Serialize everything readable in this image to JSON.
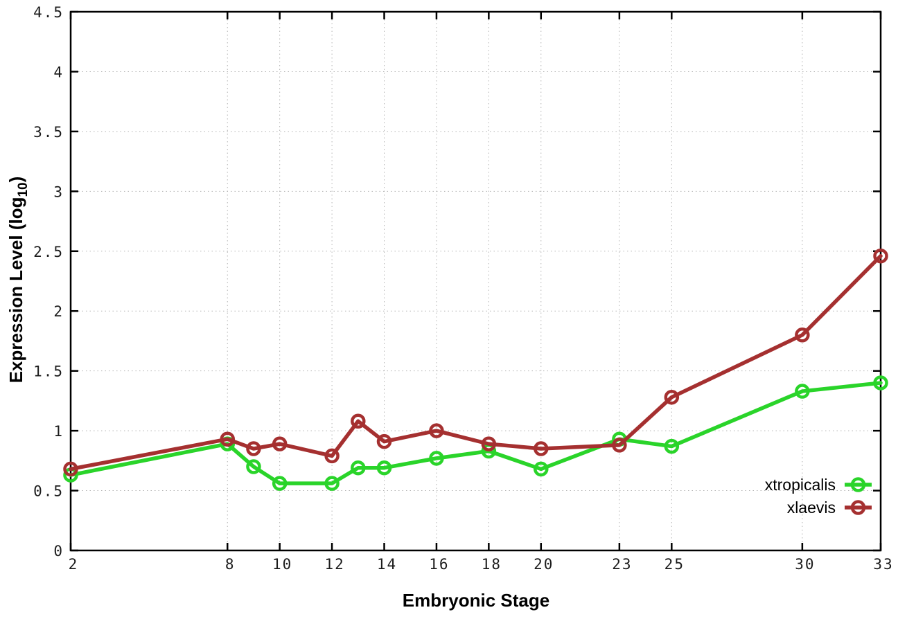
{
  "chart_data": {
    "type": "line",
    "title": "",
    "xlabel": "Embryonic Stage",
    "ylabel_prefix": "Expression Level (log",
    "ylabel_sub": "10",
    "ylabel_suffix": ")",
    "x": [
      2,
      8,
      9,
      10,
      12,
      13,
      14,
      16,
      18,
      20,
      23,
      25,
      30,
      33
    ],
    "series": [
      {
        "name": "xtropicalis",
        "color": "#2ad42a",
        "values": [
          0.63,
          0.89,
          0.7,
          0.56,
          0.56,
          0.69,
          0.69,
          0.77,
          0.83,
          0.68,
          0.93,
          0.87,
          1.33,
          1.4
        ]
      },
      {
        "name": "xlaevis",
        "color": "#a53030",
        "values": [
          0.68,
          0.93,
          0.85,
          0.89,
          0.79,
          1.08,
          0.91,
          1.0,
          0.89,
          0.85,
          0.88,
          1.28,
          1.8,
          2.46
        ]
      }
    ],
    "xlim": [
      2,
      33
    ],
    "ylim": [
      0,
      4.5
    ],
    "xticks": [
      2,
      8,
      10,
      12,
      14,
      16,
      18,
      20,
      23,
      25,
      30,
      33
    ],
    "yticks": [
      0,
      0.5,
      1,
      1.5,
      2,
      2.5,
      3,
      3.5,
      4,
      4.5
    ],
    "ytick_labels": [
      "0",
      "0.5",
      "1",
      "1.5",
      "2",
      "2.5",
      "3",
      "3.5",
      "4",
      "4.5"
    ],
    "grid": true,
    "marker": "open-circle",
    "legend_position": "inside-bottom-right"
  },
  "style": {
    "background": "#ffffff",
    "grid_color": "#b3b3b3",
    "axis_color": "#000000",
    "tick_label_color": "#1c1c1c"
  }
}
